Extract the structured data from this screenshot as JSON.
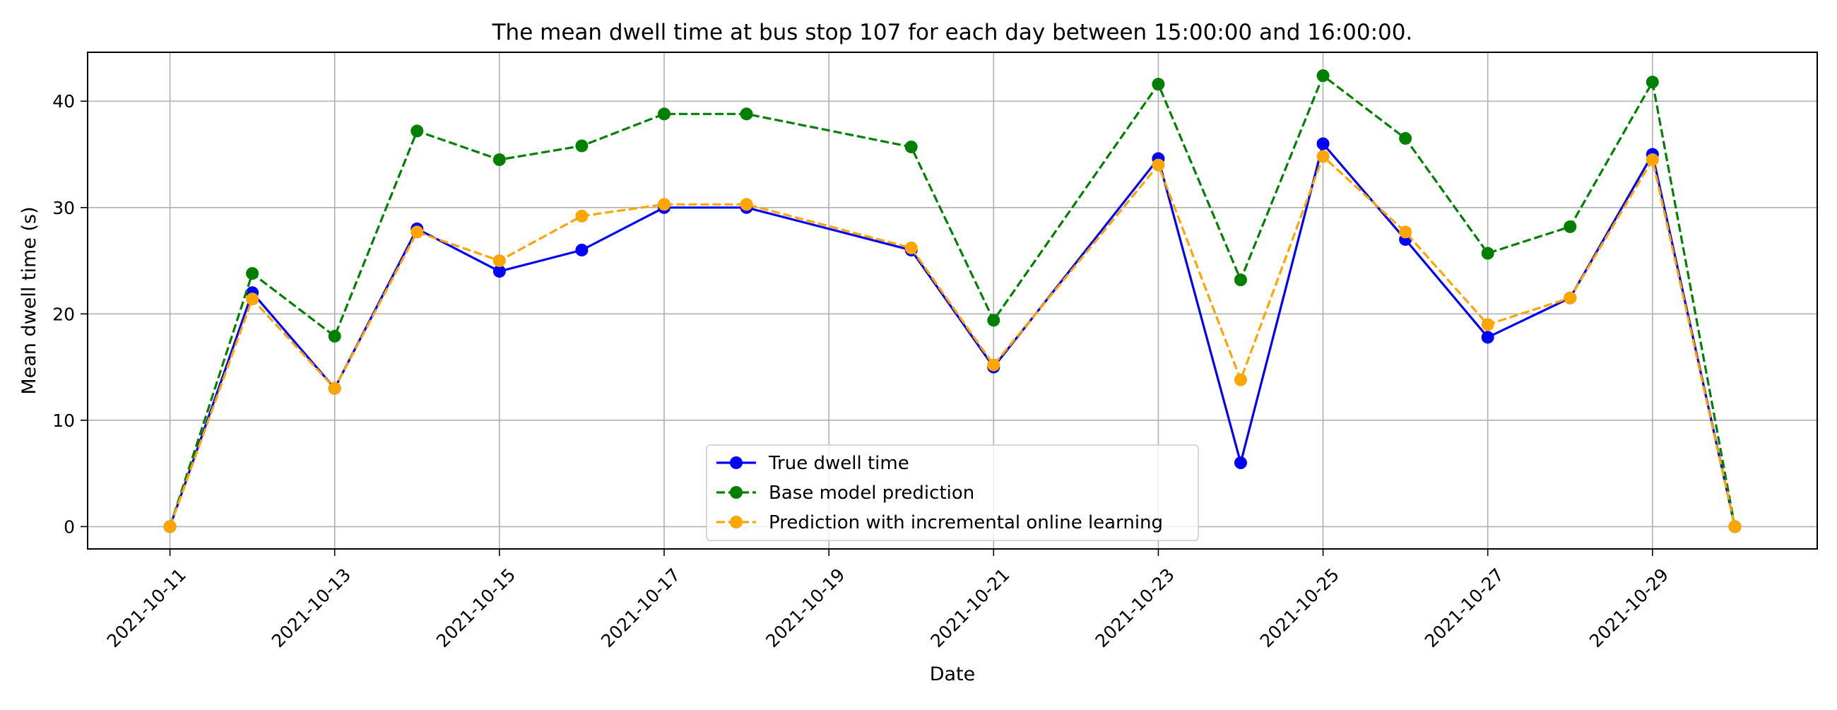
{
  "chart_data": {
    "type": "line",
    "title": "The mean dwell time at bus stop 107 for each day between 15:00:00 and 16:00:00.",
    "xlabel": "Date",
    "ylabel": "Mean dwell time (s)",
    "x_tick_labels": [
      "2021-10-11",
      "2021-10-13",
      "2021-10-15",
      "2021-10-17",
      "2021-10-19",
      "2021-10-21",
      "2021-10-23",
      "2021-10-25",
      "2021-10-27",
      "2021-10-29"
    ],
    "y_ticks": [
      0,
      10,
      20,
      30,
      40
    ],
    "xlim": [
      "2021-10-10",
      "2021-10-31"
    ],
    "ylim": [
      -2.1,
      44.6
    ],
    "grid": true,
    "legend_position": "lower center",
    "x": [
      "2021-10-11",
      "2021-10-12",
      "2021-10-13",
      "2021-10-14",
      "2021-10-15",
      "2021-10-16",
      "2021-10-17",
      "2021-10-18",
      "2021-10-20",
      "2021-10-21",
      "2021-10-23",
      "2021-10-24",
      "2021-10-25",
      "2021-10-26",
      "2021-10-27",
      "2021-10-28",
      "2021-10-29",
      "2021-10-30"
    ],
    "series": [
      {
        "name": "True dwell time",
        "color": "#0000ff",
        "line_style": "solid",
        "marker": "circle",
        "values": [
          0,
          22,
          13,
          28,
          24,
          26,
          30,
          30,
          26,
          15,
          34.6,
          6,
          36,
          27,
          17.8,
          21.5,
          35,
          0
        ]
      },
      {
        "name": "Base model prediction",
        "color": "#008000",
        "line_style": "dashed",
        "marker": "circle",
        "values": [
          0,
          23.8,
          17.9,
          37.2,
          34.5,
          35.8,
          38.8,
          38.8,
          35.7,
          19.4,
          41.6,
          23.2,
          42.4,
          36.5,
          25.7,
          28.2,
          41.8,
          0
        ]
      },
      {
        "name": "Prediction with incremental online learning",
        "color": "#ffa500",
        "line_style": "dashed",
        "marker": "circle",
        "values": [
          0,
          21.4,
          13,
          27.7,
          25,
          29.2,
          30.3,
          30.3,
          26.2,
          15.2,
          34,
          13.8,
          34.8,
          27.7,
          19,
          21.5,
          34.5,
          0
        ]
      }
    ]
  }
}
